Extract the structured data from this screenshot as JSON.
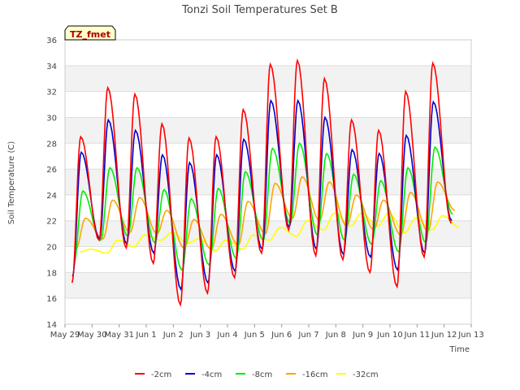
{
  "chart_data": {
    "type": "line",
    "title": "Tonzi Soil Temperatures Set B",
    "xlabel": "Time",
    "ylabel": "Soil Temperature (C)",
    "ylim": [
      14,
      36
    ],
    "yticks": [
      14,
      16,
      18,
      20,
      22,
      24,
      26,
      28,
      30,
      32,
      34,
      36
    ],
    "xlim": [
      0,
      15
    ],
    "xtick_labels": [
      "May 29",
      "May 30",
      "May 31",
      "Jun 1",
      "Jun 2",
      "Jun 3",
      "Jun 4",
      "Jun 5",
      "Jun 6",
      "Jun 7",
      "Jun 8",
      "Jun 9",
      "Jun 10",
      "Jun 11",
      "Jun 12",
      "Jun 13"
    ],
    "grid": true,
    "legend_position": "bottom-center",
    "annotation": "TZ_fmet",
    "series": [
      {
        "name": "-2cm",
        "color": "#ff0000",
        "daily_min": [
          17.2,
          20.5,
          19.9,
          18.7,
          15.5,
          16.4,
          17.6,
          19.5,
          21.3,
          19.3,
          19.0,
          18.0,
          16.9,
          19.2,
          21.8
        ],
        "daily_max": [
          28.5,
          32.3,
          31.8,
          29.5,
          28.4,
          28.5,
          30.6,
          34.1,
          34.4,
          33.0,
          29.8,
          29.0,
          32.0,
          34.2
        ]
      },
      {
        "name": "-4cm",
        "color": "#0000cc",
        "daily_min": [
          17.7,
          20.6,
          20.2,
          19.5,
          16.7,
          17.2,
          18.1,
          19.8,
          21.5,
          19.8,
          19.4,
          19.2,
          18.2,
          19.5,
          22.0
        ],
        "daily_max": [
          27.3,
          29.8,
          29.0,
          27.1,
          26.5,
          27.1,
          28.3,
          31.3,
          31.3,
          30.0,
          27.5,
          27.2,
          28.6,
          31.2
        ]
      },
      {
        "name": "-8cm",
        "color": "#00ee00",
        "daily_min": [
          18.6,
          20.5,
          20.8,
          20.3,
          18.2,
          18.6,
          19.1,
          20.5,
          21.8,
          20.9,
          20.5,
          20.2,
          19.6,
          20.3,
          22.5
        ],
        "daily_max": [
          24.3,
          26.1,
          26.1,
          24.4,
          23.7,
          24.5,
          25.8,
          27.6,
          28.0,
          27.2,
          25.6,
          25.1,
          26.1,
          27.7
        ]
      },
      {
        "name": "-16cm",
        "color": "#ffa500",
        "daily_min": [
          19.8,
          20.6,
          21.1,
          21.0,
          19.9,
          19.8,
          20.1,
          21.0,
          22.2,
          22.0,
          21.6,
          21.3,
          20.9,
          21.2,
          22.8
        ],
        "daily_max": [
          22.2,
          23.6,
          23.8,
          22.8,
          22.1,
          22.5,
          23.5,
          24.9,
          25.4,
          25.0,
          24.0,
          23.6,
          24.2,
          25.0
        ]
      },
      {
        "name": "-32cm",
        "color": "#ffff00",
        "daily_min": [
          19.6,
          19.5,
          20.0,
          20.5,
          20.3,
          19.7,
          19.8,
          20.5,
          20.8,
          21.3,
          21.6,
          21.6,
          21.1,
          21.3,
          21.5
        ],
        "daily_max": [
          19.8,
          20.5,
          20.9,
          21.1,
          20.6,
          20.5,
          20.9,
          21.5,
          22.0,
          22.6,
          22.6,
          22.6,
          22.2,
          22.4
        ]
      }
    ]
  }
}
